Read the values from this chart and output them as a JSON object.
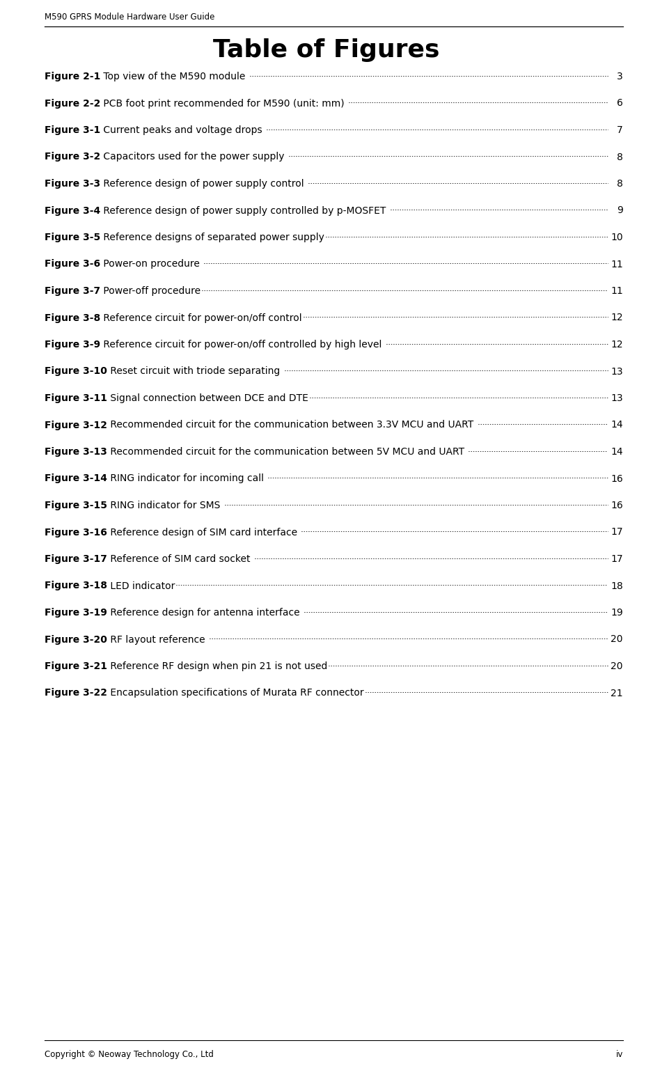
{
  "header_text": "M590 GPRS Module Hardware User Guide",
  "title": "Table of Figures",
  "footer_left": "Copyright © Neoway Technology Co., Ltd",
  "footer_right": "iv",
  "background_color": "#ffffff",
  "header_font_size": 8.5,
  "title_font_size": 26,
  "entry_font_size": 10,
  "footer_font_size": 8.5,
  "entries": [
    {
      "label": "Figure 2-1",
      "text": " Top view of the M590 module ",
      "page": "3"
    },
    {
      "label": "Figure 2-2",
      "text": " PCB foot print recommended for M590 (unit: mm) ",
      "page": "6"
    },
    {
      "label": "Figure 3-1",
      "text": " Current peaks and voltage drops ",
      "page": "7"
    },
    {
      "label": "Figure 3-2",
      "text": " Capacitors used for the power supply ",
      "page": "8"
    },
    {
      "label": "Figure 3-3",
      "text": " Reference design of power supply control ",
      "page": "8"
    },
    {
      "label": "Figure 3-4",
      "text": " Reference design of power supply controlled by p-MOSFET ",
      "page": "9"
    },
    {
      "label": "Figure 3-5",
      "text": " Reference designs of separated power supply",
      "page": "10"
    },
    {
      "label": "Figure 3-6",
      "text": " Power-on procedure ",
      "page": "11"
    },
    {
      "label": "Figure 3-7",
      "text": " Power-off procedure",
      "page": "11"
    },
    {
      "label": "Figure 3-8",
      "text": " Reference circuit for power-on/off control",
      "page": "12"
    },
    {
      "label": "Figure 3-9",
      "text": " Reference circuit for power-on/off controlled by high level ",
      "page": "12"
    },
    {
      "label": "Figure 3-10",
      "text": " Reset circuit with triode separating ",
      "page": "13"
    },
    {
      "label": "Figure 3-11",
      "text": " Signal connection between DCE and DTE",
      "page": "13"
    },
    {
      "label": "Figure 3-12",
      "text": " Recommended circuit for the communication between 3.3V MCU and UART ",
      "page": "14"
    },
    {
      "label": "Figure 3-13",
      "text": " Recommended circuit for the communication between 5V MCU and UART ",
      "page": "14"
    },
    {
      "label": "Figure 3-14",
      "text": " RING indicator for incoming call ",
      "page": "16"
    },
    {
      "label": "Figure 3-15",
      "text": " RING indicator for SMS ",
      "page": "16"
    },
    {
      "label": "Figure 3-16",
      "text": " Reference design of SIM card interface ",
      "page": "17"
    },
    {
      "label": "Figure 3-17",
      "text": " Reference of SIM card socket ",
      "page": "17"
    },
    {
      "label": "Figure 3-18",
      "text": " LED indicator",
      "page": "18"
    },
    {
      "label": "Figure 3-19",
      "text": " Reference design for antenna interface ",
      "page": "19"
    },
    {
      "label": "Figure 3-20",
      "text": " RF layout reference ",
      "page": "20"
    },
    {
      "label": "Figure 3-21",
      "text": " Reference RF design when pin 21 is not used",
      "page": "20"
    },
    {
      "label": "Figure 3-22",
      "text": " Encapsulation specifications of Murata RF connector",
      "page": "21"
    }
  ]
}
